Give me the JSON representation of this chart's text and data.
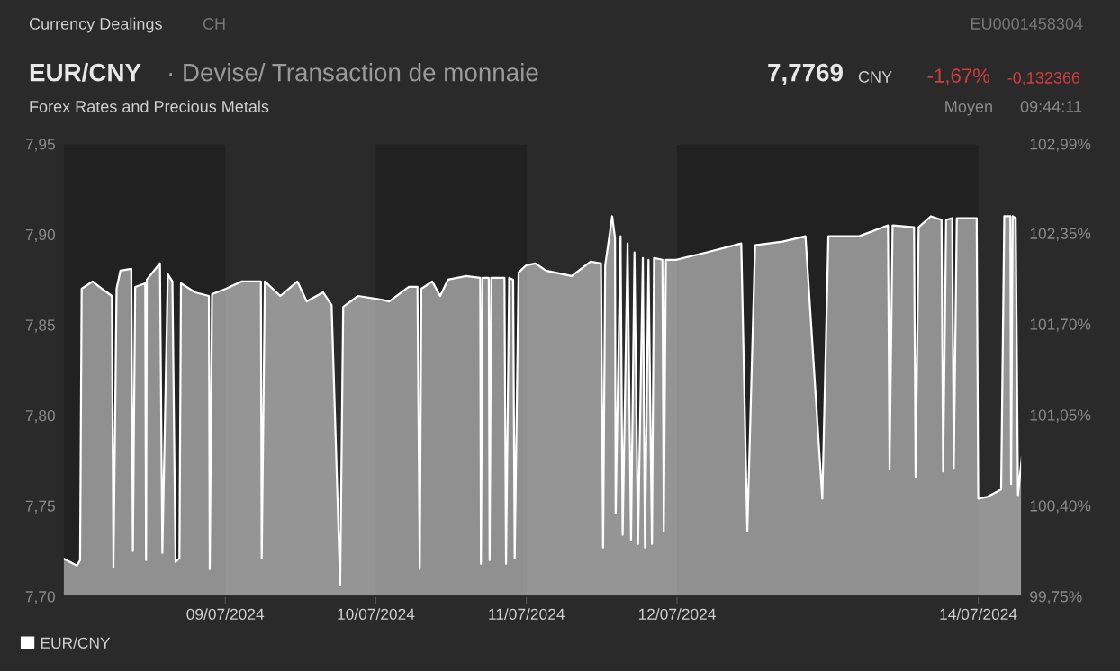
{
  "chart_data": {
    "type": "area",
    "title": "EUR/CNY",
    "subtitle": "· Devise/ Transaction de monnaie",
    "annotations": [
      "Currency Dealings",
      "CH",
      "EU0001458304",
      "Forex Rates and Precious Metals",
      "7,7769",
      "CNY",
      "-1,67%",
      "-0,132366",
      "Moyen",
      "09:44:11"
    ],
    "series": [
      {
        "name": "EUR/CNY",
        "color": "#ffffff",
        "x": [
          "2024-07-07T22:09",
          "2024-07-08T00:22",
          "2024-07-08T00:52",
          "2024-07-08T01:07",
          "2024-07-08T02:51",
          "2024-07-08T04:20",
          "2024-07-08T05:56",
          "2024-07-08T06:11",
          "2024-07-08T06:41",
          "2024-07-08T07:18",
          "2024-07-08T09:02",
          "2024-07-08T09:17",
          "2024-07-08T09:39",
          "2024-07-08T11:15",
          "2024-07-08T11:23",
          "2024-07-08T11:30",
          "2024-07-08T13:36",
          "2024-07-08T13:59",
          "2024-07-08T14:51",
          "2024-07-08T15:35",
          "2024-07-08T16:05",
          "2024-07-08T16:42",
          "2024-07-08T16:57",
          "2024-07-08T19:11",
          "2024-07-08T21:24",
          "2024-07-08T21:32",
          "2024-07-08T21:54",
          "2024-07-09T00:07",
          "2024-07-09T02:36",
          "2024-07-09T05:04",
          "2024-07-09T05:41",
          "2024-07-09T05:49",
          "2024-07-09T06:19",
          "2024-07-09T08:47",
          "2024-07-09T11:30",
          "2024-07-09T12:59",
          "2024-07-09T15:35",
          "2024-07-09T16:57",
          "2024-07-09T18:19",
          "2024-07-09T18:48",
          "2024-07-09T21:09",
          "2024-07-10T00:53",
          "2024-07-10T02:08",
          "2024-07-10T05:15",
          "2024-07-10T06:38",
          "2024-07-10T07:00",
          "2024-07-10T07:15",
          "2024-07-10T09:00",
          "2024-07-10T10:15",
          "2024-07-10T11:30",
          "2024-07-10T14:23",
          "2024-07-10T16:38",
          "2024-07-10T16:45",
          "2024-07-10T17:00",
          "2024-07-10T18:00",
          "2024-07-10T18:08",
          "2024-07-10T18:23",
          "2024-07-10T20:30",
          "2024-07-10T20:45",
          "2024-07-10T21:15",
          "2024-07-10T21:53",
          "2024-07-10T22:08",
          "2024-07-10T22:45",
          "2024-07-11T00:00",
          "2024-07-11T01:27",
          "2024-07-11T03:07",
          "2024-07-11T07:13",
          "2024-07-11T10:13",
          "2024-07-11T11:53",
          "2024-07-11T12:13",
          "2024-07-11T12:33",
          "2024-07-11T13:40",
          "2024-07-11T14:07",
          "2024-07-11T14:13",
          "2024-07-11T15:00",
          "2024-07-11T15:20",
          "2024-07-11T16:07",
          "2024-07-11T16:40",
          "2024-07-11T17:13",
          "2024-07-11T17:47",
          "2024-07-11T18:33",
          "2024-07-11T18:53",
          "2024-07-11T19:27",
          "2024-07-11T20:00",
          "2024-07-11T20:20",
          "2024-07-11T21:40",
          "2024-07-11T21:53",
          "2024-07-11T22:13",
          "2024-07-11T23:53",
          "2024-07-12T04:38",
          "2024-07-12T10:14",
          "2024-07-12T11:12",
          "2024-07-12T12:26",
          "2024-07-12T16:49",
          "2024-07-12T20:28",
          "2024-07-12T23:09",
          "2024-07-13T00:07",
          "2024-07-13T05:00",
          "2024-07-13T09:37",
          "2024-07-13T09:52",
          "2024-07-13T10:21",
          "2024-07-13T13:46",
          "2024-07-13T14:01",
          "2024-07-13T14:30",
          "2024-07-13T16:27",
          "2024-07-13T18:09",
          "2024-07-13T18:24",
          "2024-07-13T18:53",
          "2024-07-13T19:51",
          "2024-07-13T20:06",
          "2024-07-13T20:35",
          "2024-07-13T23:45",
          "2024-07-14T00:00",
          "2024-07-14T01:28",
          "2024-07-14T03:39",
          "2024-07-14T04:09",
          "2024-07-14T05:07",
          "2024-07-14T05:14",
          "2024-07-14T05:29",
          "2024-07-14T05:58",
          "2024-07-14T06:20",
          "2024-07-14T06:57"
        ],
        "values": [
          7.721,
          7.717,
          7.72,
          7.87,
          7.874,
          7.87,
          7.866,
          7.716,
          7.87,
          7.88,
          7.881,
          7.725,
          7.871,
          7.873,
          7.72,
          7.875,
          7.884,
          7.724,
          7.878,
          7.874,
          7.719,
          7.721,
          7.873,
          7.868,
          7.866,
          7.715,
          7.867,
          7.87,
          7.874,
          7.874,
          7.874,
          7.721,
          7.874,
          7.866,
          7.874,
          7.863,
          7.868,
          7.861,
          7.706,
          7.86,
          7.866,
          7.864,
          7.863,
          7.871,
          7.871,
          7.715,
          7.87,
          7.874,
          7.866,
          7.875,
          7.877,
          7.876,
          7.718,
          7.876,
          7.876,
          7.72,
          7.876,
          7.876,
          7.718,
          7.876,
          7.875,
          7.721,
          7.879,
          7.883,
          7.884,
          7.88,
          7.877,
          7.885,
          7.884,
          7.727,
          7.883,
          7.91,
          7.898,
          7.746,
          7.899,
          7.734,
          7.895,
          7.731,
          7.89,
          7.729,
          7.887,
          7.727,
          7.886,
          7.729,
          7.887,
          7.886,
          7.736,
          7.886,
          7.886,
          7.89,
          7.895,
          7.736,
          7.894,
          7.896,
          7.899,
          7.754,
          7.899,
          7.899,
          7.905,
          7.77,
          7.905,
          7.904,
          7.766,
          7.904,
          7.91,
          7.908,
          7.769,
          7.908,
          7.909,
          7.771,
          7.909,
          7.909,
          7.754,
          7.755,
          7.759,
          7.91,
          7.91,
          7.762,
          7.91,
          7.909,
          7.756,
          7.777
        ]
      }
    ],
    "xlim": [
      "2024-07-07T22:09",
      "2024-07-14T06:57"
    ],
    "xticks": [
      {
        "value": "2024-07-09",
        "label": "09/07/2024"
      },
      {
        "value": "2024-07-10",
        "label": "10/07/2024"
      },
      {
        "value": "2024-07-11",
        "label": "11/07/2024"
      },
      {
        "value": "2024-07-12",
        "label": "12/07/2024"
      },
      {
        "value": "2024-07-14",
        "label": "14/07/2024"
      }
    ],
    "ylim": [
      7.7,
      7.95
    ],
    "yticks": [
      {
        "value": 7.7,
        "label": "7,70"
      },
      {
        "value": 7.75,
        "label": "7,75"
      },
      {
        "value": 7.8,
        "label": "7,80"
      },
      {
        "value": 7.85,
        "label": "7,85"
      },
      {
        "value": 7.9,
        "label": "7,90"
      },
      {
        "value": 7.95,
        "label": "7,95"
      }
    ],
    "y2lim": [
      99.75,
      102.99
    ],
    "y2ticks": [
      {
        "value": 99.75,
        "label": "99,75%"
      },
      {
        "value": 100.4,
        "label": "100,40%"
      },
      {
        "value": 101.05,
        "label": "101,05%"
      },
      {
        "value": 101.7,
        "label": "101,70%"
      },
      {
        "value": 102.35,
        "label": "102,35%"
      },
      {
        "value": 102.99,
        "label": "102,99%"
      }
    ],
    "bands": [
      {
        "axis": "x",
        "from": "2024-07-07T22:09",
        "to": "2024-07-09",
        "color": "#212121"
      },
      {
        "axis": "x",
        "from": "2024-07-10",
        "to": "2024-07-11",
        "color": "#212121"
      },
      {
        "axis": "x",
        "from": "2024-07-12",
        "to": "2024-07-14",
        "color": "#212121"
      }
    ],
    "grid": false,
    "legend": "bottom left"
  }
}
